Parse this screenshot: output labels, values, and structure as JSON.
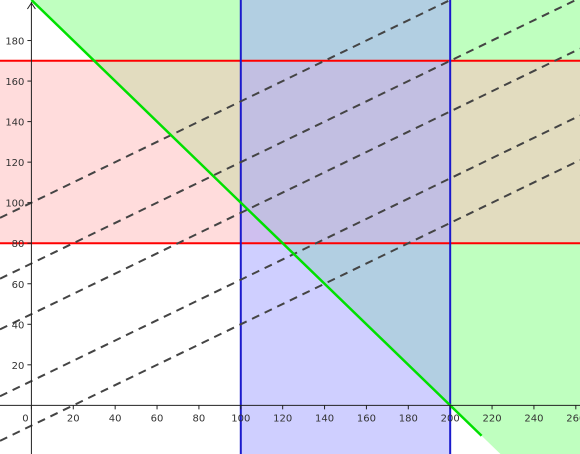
{
  "chart_data": {
    "type": "area",
    "title": "",
    "xlabel": "",
    "ylabel": "",
    "xlim": [
      -15,
      262
    ],
    "ylim": [
      -24,
      200
    ],
    "grid": false,
    "x_ticks": [
      "0",
      "20",
      "40",
      "60",
      "80",
      "100",
      "120",
      "140",
      "160",
      "180",
      "200",
      "220",
      "240",
      "260"
    ],
    "y_ticks": [
      "20",
      "40",
      "60",
      "80",
      "100",
      "120",
      "140",
      "160",
      "180"
    ],
    "regions": [
      {
        "kind": "half-plane",
        "boundary": "x + y = 200",
        "side": "above",
        "color": "#bfffbf"
      },
      {
        "kind": "horizontal-band",
        "from": 80,
        "to": 170,
        "color": "#ffbfbf",
        "edge_color": "#ff0000"
      },
      {
        "kind": "vertical-band",
        "from": 100,
        "to": 200,
        "color": "#a8a8ff",
        "edge_color": "#1a1acc"
      }
    ],
    "lines": [
      {
        "kind": "solid",
        "points": [
          [
            0,
            200
          ],
          [
            215,
            -15
          ]
        ],
        "color": "#00e000"
      },
      {
        "kind": "dashed",
        "slope": 0.5,
        "intercepts": [
          -10,
          12,
          45,
          70,
          100
        ],
        "color": "#444444"
      }
    ],
    "vertex_point": [
      100,
      100
    ]
  }
}
